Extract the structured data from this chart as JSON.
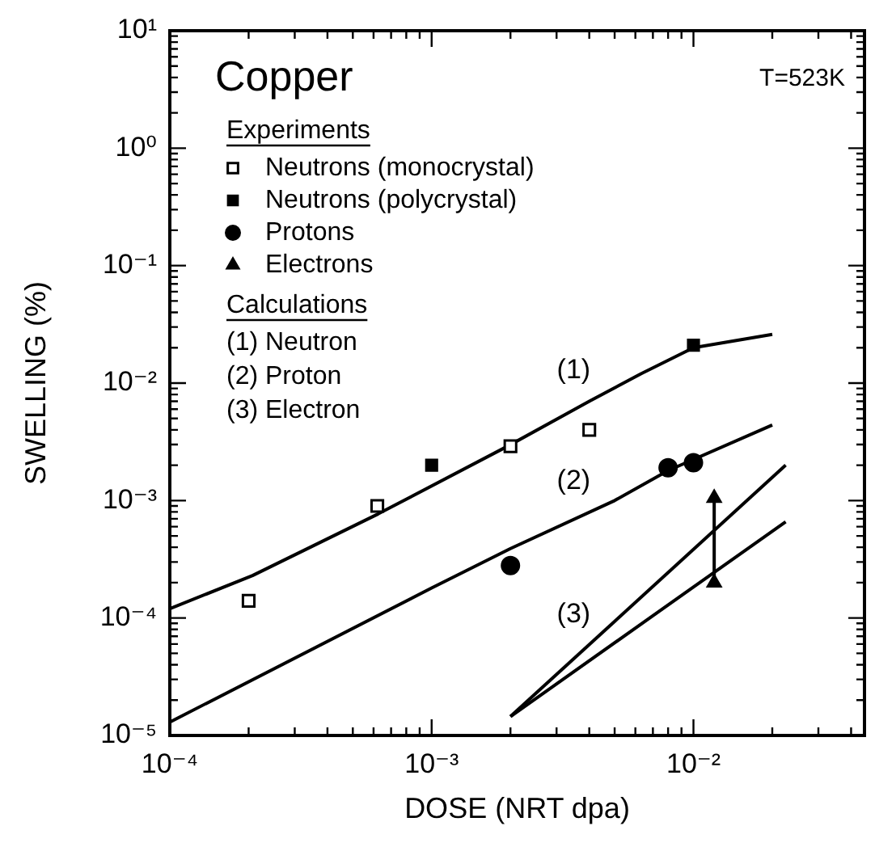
{
  "chart_data": {
    "type": "scatter",
    "title": "Copper",
    "subtitle": "T=523K",
    "xlabel": "DOSE (NRT dpa)",
    "ylabel": "SWELLING (%)",
    "log": "xy",
    "grid": false,
    "legend": "top left",
    "line_style": "solid",
    "xlim": [
      0.0001,
      0.045
    ],
    "xticks": [
      {
        "value": 0.0001,
        "label": "10⁻⁴"
      },
      {
        "value": 0.0002,
        "label": null
      },
      {
        "value": 0.0003,
        "label": null
      },
      {
        "value": 0.0004,
        "label": null
      },
      {
        "value": 0.0005,
        "label": null
      },
      {
        "value": 0.0006,
        "label": null
      },
      {
        "value": 0.0007,
        "label": null
      },
      {
        "value": 0.0008,
        "label": null
      },
      {
        "value": 0.0009,
        "label": null
      },
      {
        "value": 0.001,
        "label": "10⁻³"
      },
      {
        "value": 0.002,
        "label": null
      },
      {
        "value": 0.003,
        "label": null
      },
      {
        "value": 0.004,
        "label": null
      },
      {
        "value": 0.005,
        "label": null
      },
      {
        "value": 0.006,
        "label": null
      },
      {
        "value": 0.007,
        "label": null
      },
      {
        "value": 0.008,
        "label": null
      },
      {
        "value": 0.009,
        "label": null
      },
      {
        "value": 0.01,
        "label": "10⁻²"
      },
      {
        "value": 0.02,
        "label": null
      },
      {
        "value": 0.03,
        "label": null
      },
      {
        "value": 0.04,
        "label": null
      }
    ],
    "ylim": [
      1e-05,
      10
    ],
    "yticks": [
      {
        "value": 1e-05,
        "label": "10⁻⁵"
      },
      {
        "value": 2e-05,
        "label": null
      },
      {
        "value": 3e-05,
        "label": null
      },
      {
        "value": 4e-05,
        "label": null
      },
      {
        "value": 5e-05,
        "label": null
      },
      {
        "value": 6e-05,
        "label": null
      },
      {
        "value": 7e-05,
        "label": null
      },
      {
        "value": 8e-05,
        "label": null
      },
      {
        "value": 9e-05,
        "label": null
      },
      {
        "value": 0.0001,
        "label": "10⁻⁴"
      },
      {
        "value": 0.0002,
        "label": null
      },
      {
        "value": 0.0003,
        "label": null
      },
      {
        "value": 0.0004,
        "label": null
      },
      {
        "value": 0.0005,
        "label": null
      },
      {
        "value": 0.0006,
        "label": null
      },
      {
        "value": 0.0007,
        "label": null
      },
      {
        "value": 0.0008,
        "label": null
      },
      {
        "value": 0.0009,
        "label": null
      },
      {
        "value": 0.001,
        "label": "10⁻³"
      },
      {
        "value": 0.002,
        "label": null
      },
      {
        "value": 0.003,
        "label": null
      },
      {
        "value": 0.004,
        "label": null
      },
      {
        "value": 0.005,
        "label": null
      },
      {
        "value": 0.006,
        "label": null
      },
      {
        "value": 0.007,
        "label": null
      },
      {
        "value": 0.008,
        "label": null
      },
      {
        "value": 0.009,
        "label": null
      },
      {
        "value": 0.01,
        "label": "10⁻²"
      },
      {
        "value": 0.02,
        "label": null
      },
      {
        "value": 0.03,
        "label": null
      },
      {
        "value": 0.04,
        "label": null
      },
      {
        "value": 0.05,
        "label": null
      },
      {
        "value": 0.06,
        "label": null
      },
      {
        "value": 0.07,
        "label": null
      },
      {
        "value": 0.08,
        "label": null
      },
      {
        "value": 0.09,
        "label": null
      },
      {
        "value": 0.1,
        "label": "10⁻¹"
      },
      {
        "value": 0.2,
        "label": null
      },
      {
        "value": 0.3,
        "label": null
      },
      {
        "value": 0.4,
        "label": null
      },
      {
        "value": 0.5,
        "label": null
      },
      {
        "value": 0.6,
        "label": null
      },
      {
        "value": 0.7,
        "label": null
      },
      {
        "value": 0.8,
        "label": null
      },
      {
        "value": 0.9,
        "label": null
      },
      {
        "value": 1,
        "label": "10⁰"
      },
      {
        "value": 2,
        "label": null
      },
      {
        "value": 3,
        "label": null
      },
      {
        "value": 4,
        "label": null
      },
      {
        "value": 5,
        "label": null
      },
      {
        "value": 6,
        "label": null
      },
      {
        "value": 7,
        "label": null
      },
      {
        "value": 8,
        "label": null
      },
      {
        "value": 9,
        "label": null
      },
      {
        "value": 10,
        "label": "10¹"
      }
    ],
    "annotations": [
      "Experiments",
      "Calculations",
      "(1) Neutron",
      "(2) Proton",
      "(3) Electron"
    ],
    "series": [
      {
        "name": "Neutrons (monocrystal)",
        "marker": "square-open",
        "color": "#000000",
        "x": [
          0.0002,
          0.00062,
          0.002,
          0.004
        ],
        "values": [
          0.00014,
          0.0009,
          0.0029,
          0.004
        ]
      },
      {
        "name": "Neutrons (polycrystal)",
        "marker": "square",
        "color": "#000000",
        "x": [
          0.001,
          0.01
        ],
        "values": [
          0.002,
          0.021
        ]
      },
      {
        "name": "Protons",
        "marker": "circle",
        "color": "#000000",
        "x": [
          0.002,
          0.008,
          0.01
        ],
        "values": [
          0.00028,
          0.0019,
          0.0021
        ]
      },
      {
        "name": "Electrons",
        "type": "line",
        "marker": "triangle",
        "color": "#000000",
        "x": [
          0.012,
          0.012
        ],
        "values": [
          0.00105,
          0.0002
        ]
      },
      {
        "name": "(1)",
        "type": "line",
        "marker": "none",
        "color": "#000000",
        "x": [
          0.0001,
          0.000207,
          0.000625,
          0.00195,
          0.004,
          0.0063,
          0.01,
          0.02
        ],
        "values": [
          0.00012,
          0.00023,
          0.00077,
          0.0029,
          0.007,
          0.012,
          0.02,
          0.026
        ]
      },
      {
        "name": "(2)",
        "type": "line",
        "marker": "none",
        "color": "#000000",
        "x": [
          0.0001,
          0.001,
          0.002,
          0.005,
          0.008,
          0.02
        ],
        "values": [
          1.3e-05,
          0.00018,
          0.00039,
          0.001,
          0.0018,
          0.0044
        ]
      },
      {
        "name": "(3)",
        "type": "line",
        "marker": "none",
        "color": "#000000",
        "x": [
          0.002,
          0.0225
        ],
        "values": [
          1.45e-05,
          0.002
        ]
      },
      {
        "type": "line",
        "marker": "none",
        "color": "#000000",
        "x": [
          0.002,
          0.0225
        ],
        "values": [
          1.45e-05,
          0.00066
        ]
      }
    ]
  }
}
